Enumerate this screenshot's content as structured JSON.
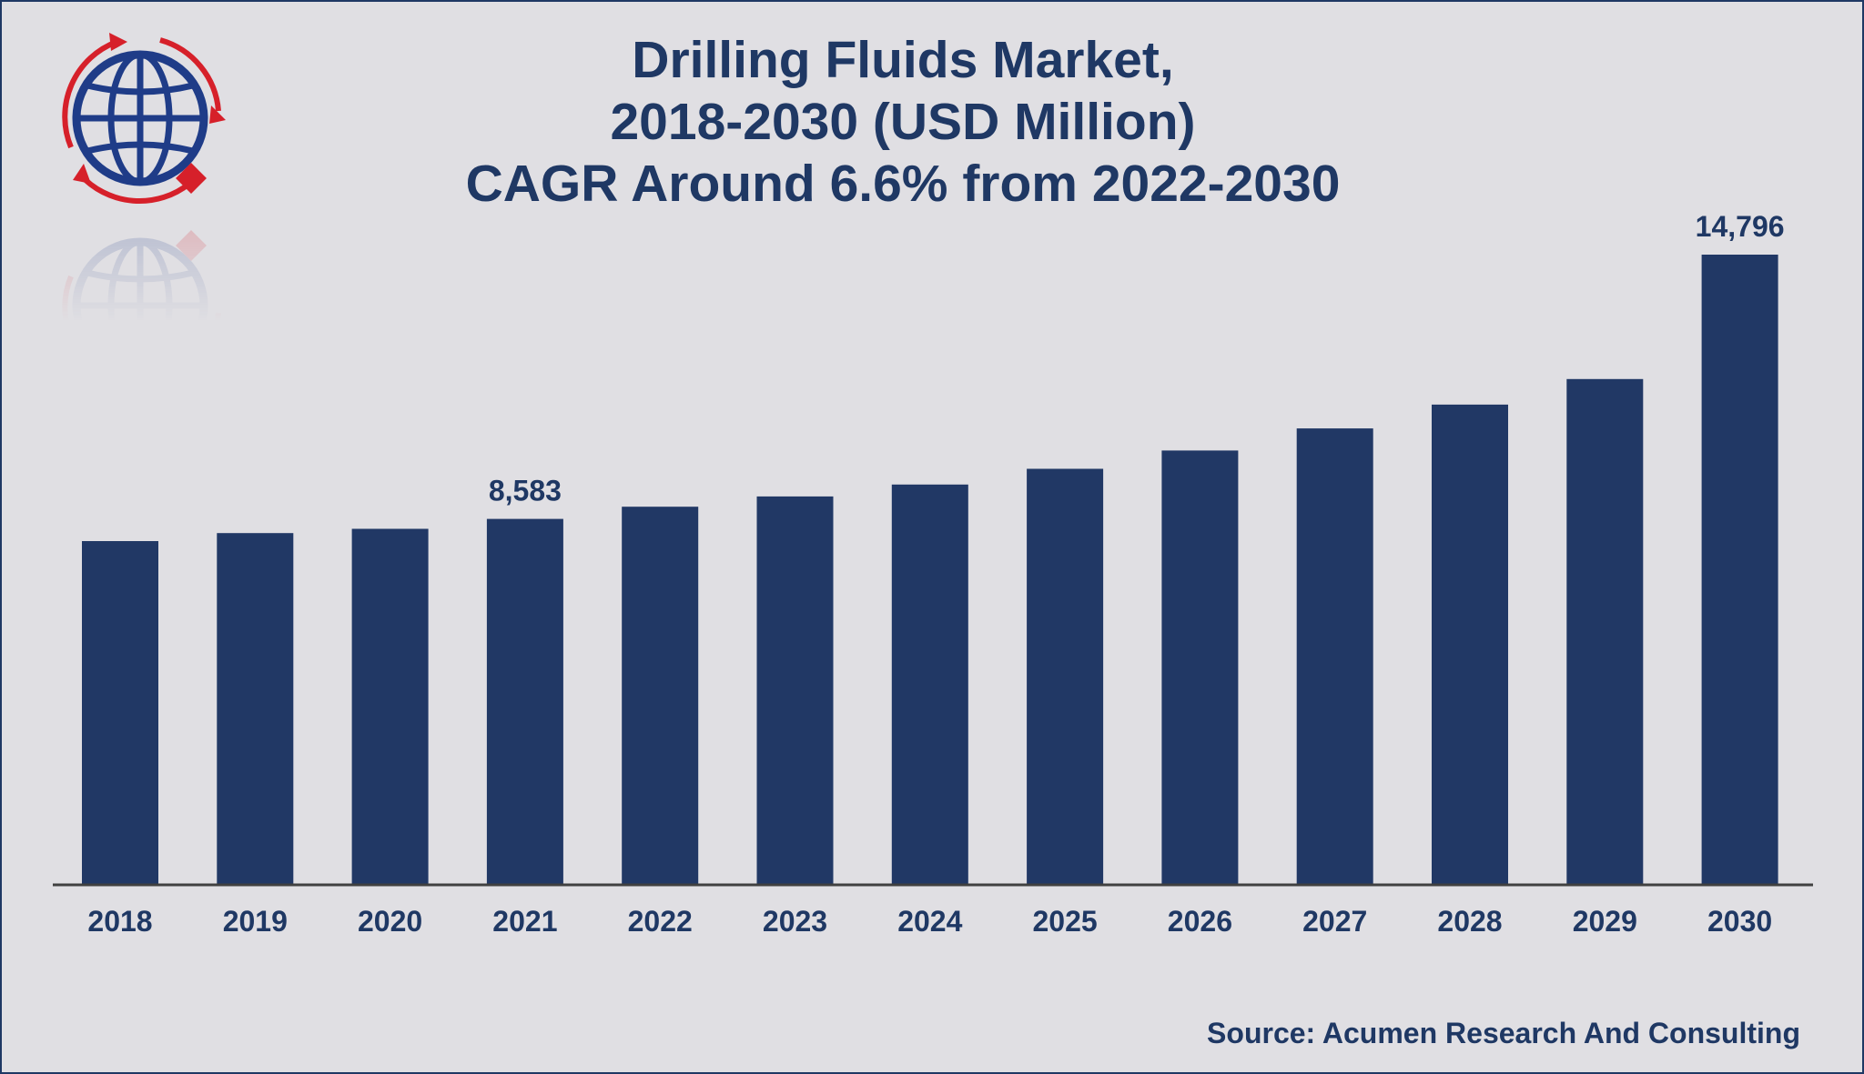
{
  "title_lines": [
    "Drilling Fluids Market,",
    "2018-2030 (USD Million)",
    "CAGR Around 6.6% from 2022-2030"
  ],
  "source": "Source: Acumen Research And Consulting",
  "colors": {
    "bar": "#213865",
    "text": "#1f3864",
    "background": "#e0dfe3",
    "axis": "#404040",
    "logo_red": "#d6202a",
    "logo_blue": "#1f3c88"
  },
  "logo": {
    "icon": "globe-with-arrows-icon"
  },
  "chart_data": {
    "type": "bar",
    "title": "Drilling Fluids Market, 2018-2030 (USD Million) CAGR Around 6.6% from 2022-2030",
    "categories": [
      "2018",
      "2019",
      "2020",
      "2021",
      "2022",
      "2023",
      "2024",
      "2025",
      "2026",
      "2027",
      "2028",
      "2029",
      "2030"
    ],
    "values": [
      8060,
      8250,
      8350,
      8583,
      8870,
      9110,
      9390,
      9760,
      10190,
      10710,
      11270,
      11870,
      14796
    ],
    "data_labels": [
      {
        "category": "2021",
        "text": "8,583"
      },
      {
        "category": "2030",
        "text": "14,796"
      }
    ],
    "xlabel": "",
    "ylabel": "",
    "ylim": [
      0,
      15500
    ],
    "grid": false,
    "legend": "none"
  }
}
